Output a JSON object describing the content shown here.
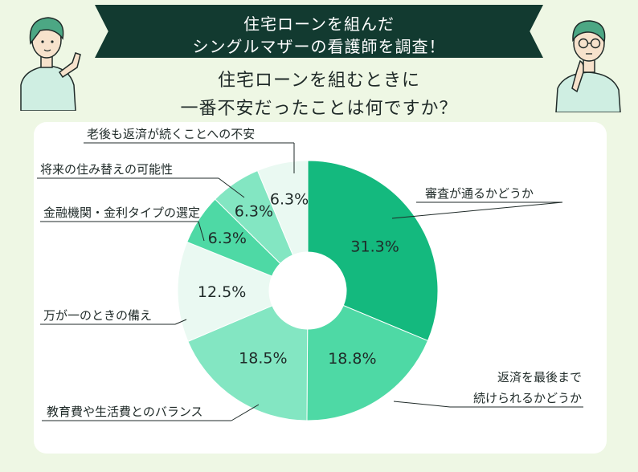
{
  "header": {
    "banner_line1": "住宅ローンを組んだ",
    "banner_line2": "シングルマザーの看護師を調査！",
    "question_line1": "住宅ローンを組むときに",
    "question_line2": "一番不安だったことは何ですか？"
  },
  "colors": {
    "background": "#eef7e4",
    "banner": "#123a30",
    "slice_1": "#14b97e",
    "slice_2": "#4ed9a5",
    "slice_3": "#83e6c2",
    "slice_4": "#eaf9f2",
    "slice_5": "#4ed9a5",
    "slice_6": "#83e6c2",
    "slice_7": "#eaf9f2",
    "skin": "#f7e2cc",
    "shirt": "#cfeee2",
    "hair": "#4ca784"
  },
  "chart_data": {
    "type": "pie",
    "donut": true,
    "start_angle_deg": 0,
    "direction": "clockwise",
    "slices": [
      {
        "label": "審査が通るかどうか",
        "value": 31.3,
        "value_label": "31.3%"
      },
      {
        "label": "返済を最後まで\n続けられるかどうか",
        "value": 18.8,
        "value_label": "18.8%"
      },
      {
        "label": "教育費や生活費とのバランス",
        "value": 18.5,
        "value_label": "18.5%"
      },
      {
        "label": "万が一のときの備え",
        "value": 12.5,
        "value_label": "12.5%"
      },
      {
        "label": "金融機関・金利タイプの選定",
        "value": 6.3,
        "value_label": "6.3%"
      },
      {
        "label": "将来の住み替えの可能性",
        "value": 6.3,
        "value_label": "6.3%"
      },
      {
        "label": "老後も返済が続くことへの不安",
        "value": 6.3,
        "value_label": "6.3%"
      }
    ]
  }
}
